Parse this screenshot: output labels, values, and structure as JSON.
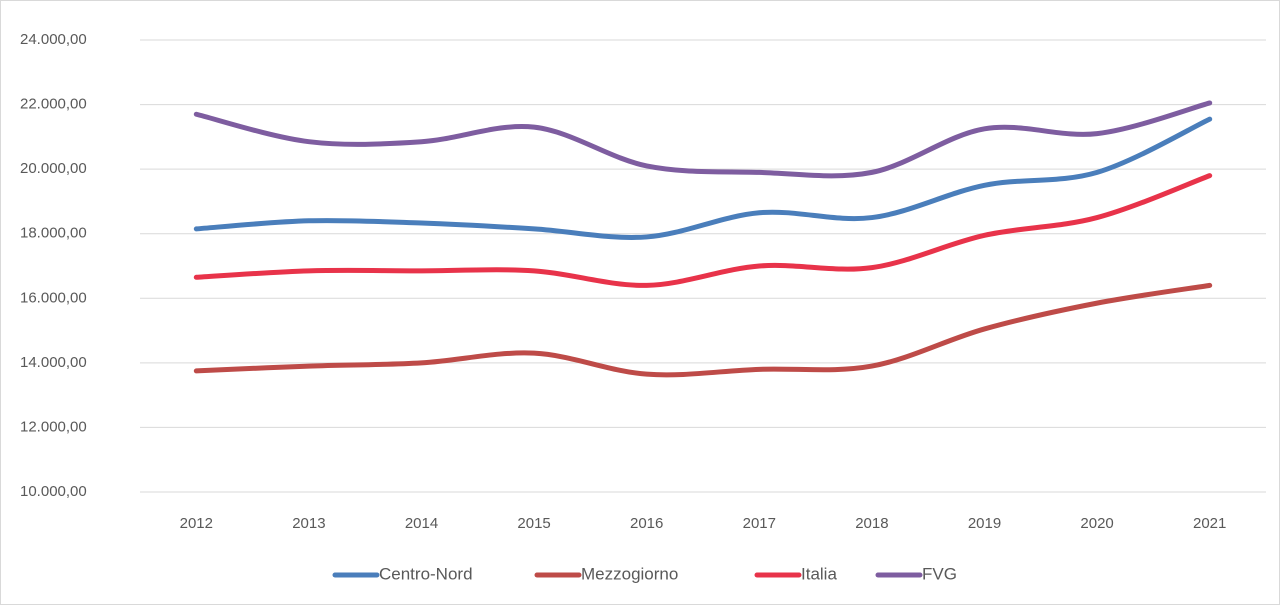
{
  "chart_data": {
    "type": "line",
    "categories": [
      "2012",
      "2013",
      "2014",
      "2015",
      "2016",
      "2017",
      "2018",
      "2019",
      "2020",
      "2021"
    ],
    "series": [
      {
        "name": "Centro-Nord",
        "color": "#4a7ebb",
        "values": [
          18150,
          18400,
          18330,
          18150,
          17900,
          18650,
          18500,
          19500,
          19900,
          21550
        ]
      },
      {
        "name": "Mezzogiorno",
        "color": "#be4b48",
        "values": [
          13750,
          13900,
          14000,
          14300,
          13650,
          13800,
          13900,
          15050,
          15850,
          16400
        ]
      },
      {
        "name": "Italia",
        "color": "#e8334a",
        "values": [
          16650,
          16850,
          16850,
          16850,
          16400,
          17000,
          16950,
          17950,
          18500,
          19800
        ]
      },
      {
        "name": "FVG",
        "color": "#7e5da0",
        "values": [
          21700,
          20850,
          20850,
          21300,
          20100,
          19900,
          19900,
          21250,
          21100,
          22050
        ]
      }
    ],
    "ylim": [
      10000,
      24000
    ],
    "yticks": [
      {
        "value": 10000,
        "label": "10.000,00"
      },
      {
        "value": 12000,
        "label": "12.000,00"
      },
      {
        "value": 14000,
        "label": "14.000,00"
      },
      {
        "value": 16000,
        "label": "16.000,00"
      },
      {
        "value": 18000,
        "label": "18.000,00"
      },
      {
        "value": 20000,
        "label": "20.000,00"
      },
      {
        "value": 22000,
        "label": "22.000,00"
      },
      {
        "value": 24000,
        "label": "24.000,00"
      }
    ],
    "grid": true,
    "legend": "bottom",
    "smooth": true
  }
}
